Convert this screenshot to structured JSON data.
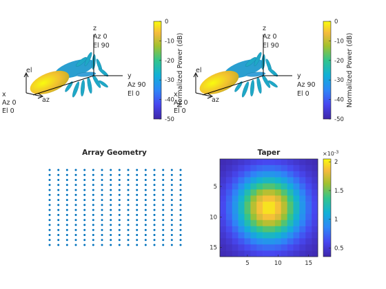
{
  "patterns": [
    {
      "labels": {
        "x_axis": [
          "x",
          "Az 0",
          "El 0"
        ],
        "y_axis": [
          "y",
          "Az 90",
          "El 0"
        ],
        "z_axis": [
          "z",
          "Az 0",
          "El 90"
        ],
        "az": "az",
        "el": "el"
      },
      "colorbar": {
        "label": "Normalized Power (dB)",
        "ticks": [
          0,
          -10,
          -20,
          -30,
          -40,
          -50
        ],
        "range": [
          -50,
          0
        ]
      }
    },
    {
      "labels": {
        "x_axis": [
          "x",
          "Az 0",
          "El 0"
        ],
        "y_axis": [
          "y",
          "Az 90",
          "El 0"
        ],
        "z_axis": [
          "z",
          "Az 0",
          "El 90"
        ],
        "az": "az",
        "el": "el"
      },
      "colorbar": {
        "label": "Normalized Power (dB)",
        "ticks": [
          0,
          -10,
          -20,
          -30,
          -40,
          -50
        ],
        "range": [
          -50,
          0
        ]
      }
    }
  ],
  "chart_data": [
    {
      "type": "scatter",
      "title": "Array Geometry",
      "grid": {
        "rows": 16,
        "cols": 16
      },
      "color": "#0072BD"
    },
    {
      "type": "heatmap",
      "title": "Taper",
      "rows": 16,
      "cols": 16,
      "xticks": [
        5,
        10,
        15
      ],
      "yticks": [
        5,
        10,
        15
      ],
      "xlim": [
        0.5,
        16.5
      ],
      "ylim": [
        0.5,
        16.5
      ],
      "colorbar": {
        "ticks": [
          0.5,
          1,
          1.5,
          2
        ],
        "range": [
          0.35,
          2.05
        ],
        "exponent_label": "×10",
        "exponent": "-3"
      },
      "taper": {
        "peak": 0.002,
        "min": 0.00036,
        "center": [
          8.5,
          8.5
        ]
      }
    }
  ]
}
